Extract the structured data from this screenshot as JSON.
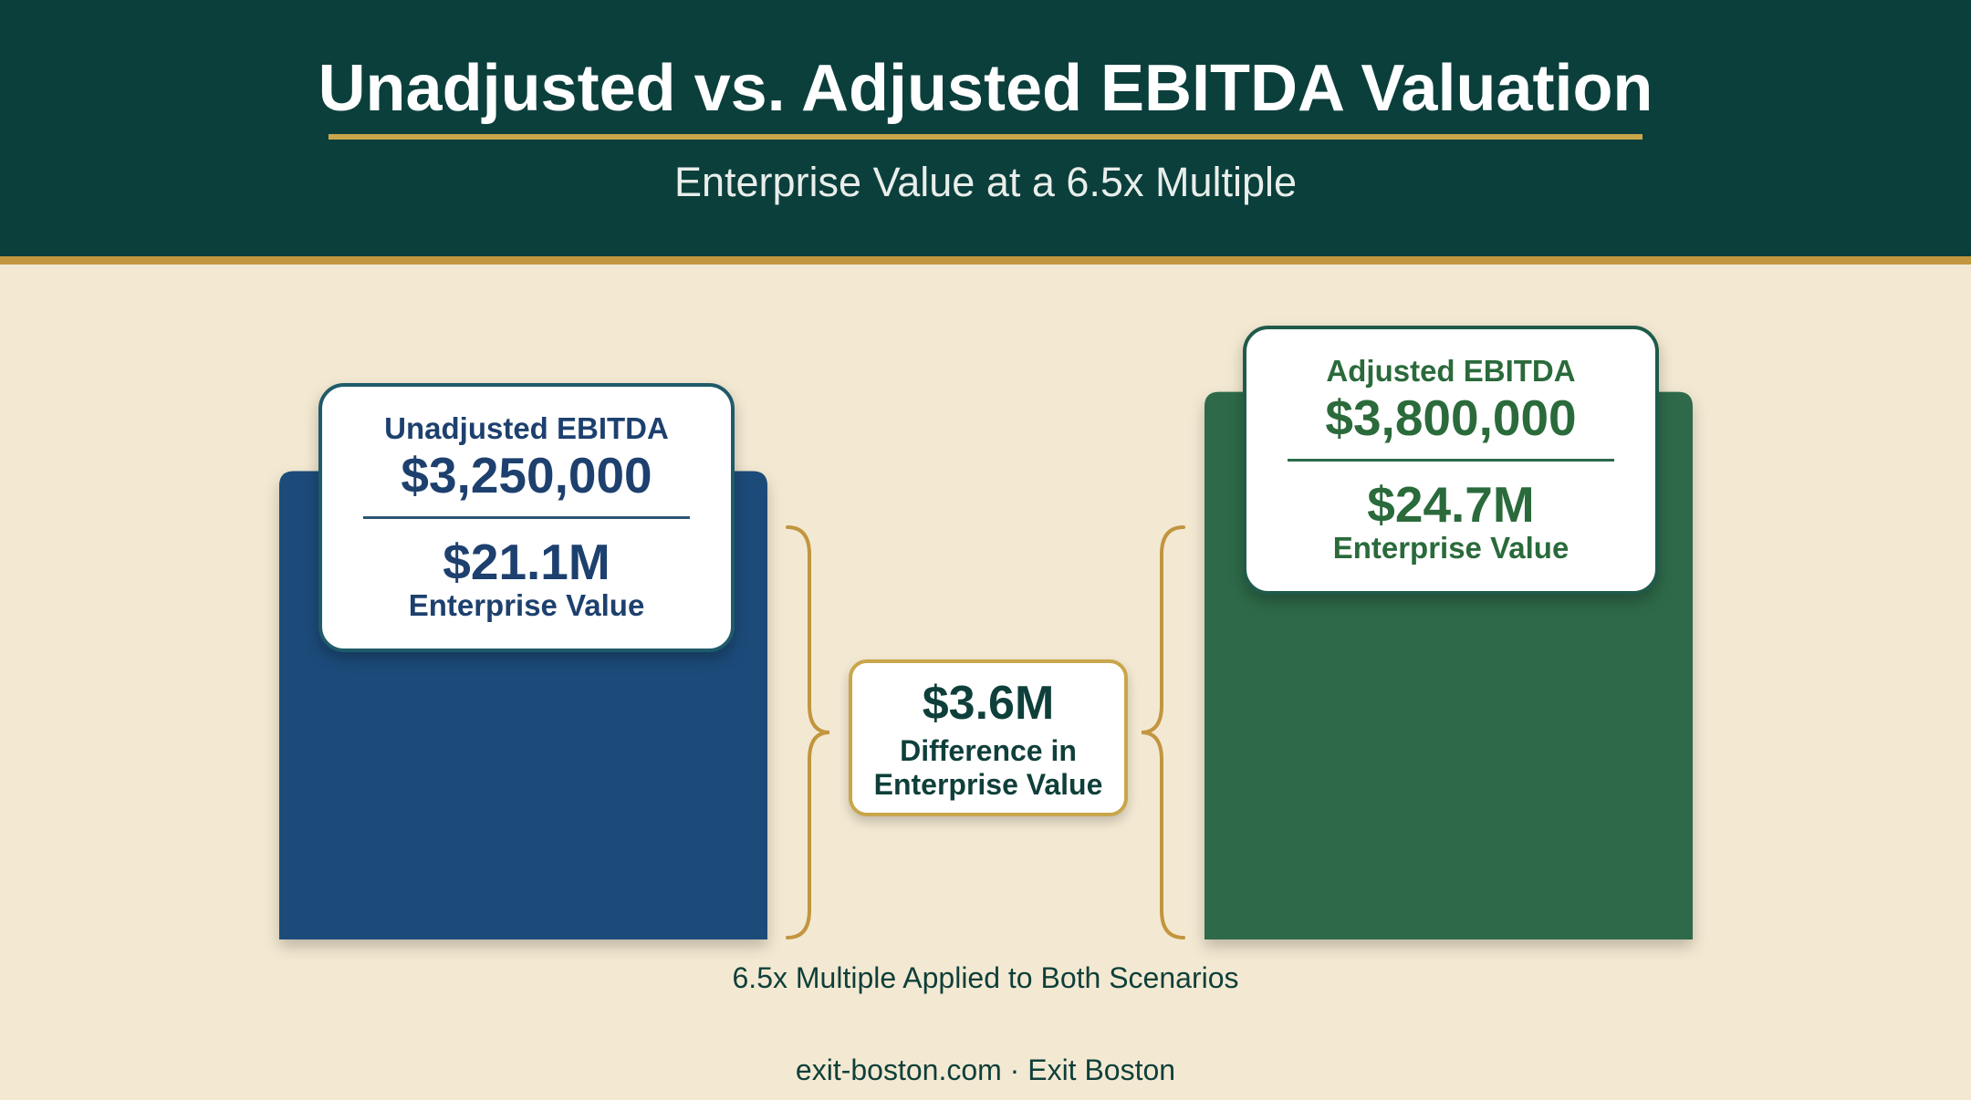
{
  "title": "Unadjusted vs. Adjusted EBITDA Valuation",
  "subtitle": "Enterprise Value at a 6.5x Multiple",
  "colors": {
    "header_bg": "#0b3f3c",
    "accent_gold": "#c2953f",
    "background": "#f3e9d2",
    "unadjusted_bar": "#1b4b7a",
    "adjusted_bar": "#2d6a48"
  },
  "chart_data": {
    "type": "bar",
    "multiple": 6.5,
    "categories": [
      "Unadjusted EBITDA",
      "Adjusted EBITDA"
    ],
    "values": [
      3250000,
      3800000
    ],
    "value_labels": [
      "$3,250,000",
      "$3,800,000"
    ],
    "enterprise_values": [
      21.1,
      24.7
    ],
    "enterprise_value_labels": [
      "$21.1M",
      "$24.7M"
    ],
    "enterprise_value_caption": "Enterprise Value",
    "difference": 3.6,
    "difference_label": "$3.6M",
    "difference_caption": "Difference in Enterprise Value",
    "grid": false,
    "legend": "none"
  },
  "footnote": "6.5x Multiple Applied to Both Scenarios",
  "footer": "exit-boston.com · Exit Boston"
}
